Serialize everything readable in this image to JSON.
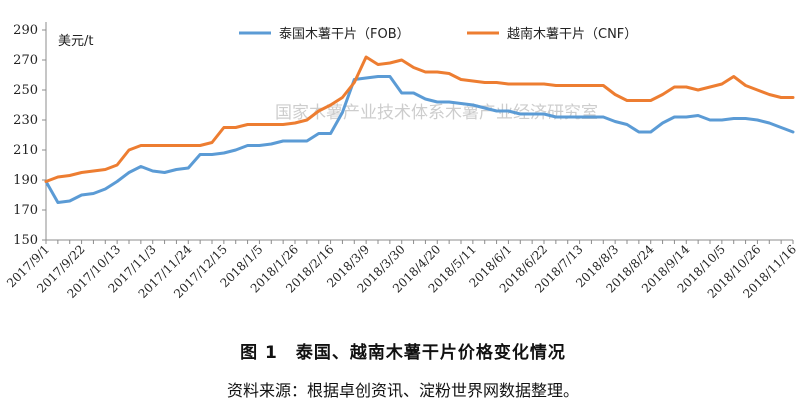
{
  "chart_data": {
    "type": "line",
    "ylabel": "美元/t",
    "ylim": [
      150,
      290
    ],
    "yticks": [
      150,
      170,
      190,
      210,
      230,
      250,
      270,
      290
    ],
    "grid": false,
    "legend": "top",
    "x": [
      "2017/9/1",
      "2017/9/8",
      "2017/9/15",
      "2017/9/22",
      "2017/9/29",
      "2017/10/6",
      "2017/10/13",
      "2017/10/20",
      "2017/10/27",
      "2017/11/3",
      "2017/11/10",
      "2017/11/17",
      "2017/11/24",
      "2017/12/1",
      "2017/12/8",
      "2017/12/15",
      "2017/12/22",
      "2017/12/29",
      "2018/1/5",
      "2018/1/12",
      "2018/1/19",
      "2018/1/26",
      "2018/2/2",
      "2018/2/9",
      "2018/2/16",
      "2018/2/23",
      "2018/3/2",
      "2018/3/9",
      "2018/3/16",
      "2018/3/23",
      "2018/3/30",
      "2018/4/6",
      "2018/4/13",
      "2018/4/20",
      "2018/4/27",
      "2018/5/4",
      "2018/5/11",
      "2018/5/18",
      "2018/5/25",
      "2018/6/1",
      "2018/6/8",
      "2018/6/15",
      "2018/6/22",
      "2018/6/29",
      "2018/7/6",
      "2018/7/13",
      "2018/7/20",
      "2018/7/27",
      "2018/8/3",
      "2018/8/10",
      "2018/8/17",
      "2018/8/24",
      "2018/8/31",
      "2018/9/7",
      "2018/9/14",
      "2018/9/21",
      "2018/9/28",
      "2018/10/5",
      "2018/10/12",
      "2018/10/19",
      "2018/10/26",
      "2018/11/2",
      "2018/11/9",
      "2018/11/16"
    ],
    "xtick_labels": [
      "2017/9/1",
      "2017/9/22",
      "2017/10/13",
      "2017/11/3",
      "2017/11/24",
      "2017/12/15",
      "2018/1/5",
      "2018/1/26",
      "2018/2/16",
      "2018/3/9",
      "2018/3/30",
      "2018/4/20",
      "2018/5/11",
      "2018/6/1",
      "2018/6/22",
      "2018/7/13",
      "2018/8/3",
      "2018/8/24",
      "2018/9/14",
      "2018/10/5",
      "2018/10/26",
      "2018/11/16"
    ],
    "series": [
      {
        "name": "泰国木薯干片（FOB）",
        "color": "#5b9bd5",
        "values": [
          189,
          175,
          176,
          180,
          181,
          184,
          189,
          195,
          199,
          196,
          195,
          197,
          198,
          207,
          207,
          208,
          210,
          213,
          213,
          214,
          216,
          216,
          216,
          221,
          221,
          235,
          257,
          258,
          259,
          259,
          248,
          248,
          244,
          242,
          242,
          241,
          240,
          238,
          236,
          236,
          234,
          234,
          234,
          232,
          232,
          232,
          232,
          232,
          229,
          227,
          222,
          222,
          228,
          232,
          232,
          233,
          230,
          230,
          231,
          231,
          230,
          228,
          225,
          222
        ]
      },
      {
        "name": "越南木薯干片（CNF）",
        "color": "#ed7d31",
        "values": [
          189,
          192,
          193,
          195,
          196,
          197,
          200,
          210,
          213,
          213,
          213,
          213,
          213,
          213,
          215,
          225,
          225,
          227,
          227,
          227,
          227,
          228,
          230,
          236,
          240,
          245,
          255,
          272,
          267,
          268,
          270,
          265,
          262,
          262,
          261,
          257,
          256,
          255,
          255,
          254,
          254,
          254,
          254,
          253,
          253,
          253,
          253,
          253,
          247,
          243,
          243,
          243,
          247,
          252,
          252,
          250,
          252,
          254,
          259,
          253,
          250,
          247,
          245,
          245
        ]
      }
    ]
  },
  "watermark": "国家木薯产业技术体系木薯产业经济研究室",
  "figure": {
    "title": "图 1　泰国、越南木薯干片价格变化情况",
    "source": "资料来源：根据卓创资讯、淀粉世界网数据整理。"
  }
}
